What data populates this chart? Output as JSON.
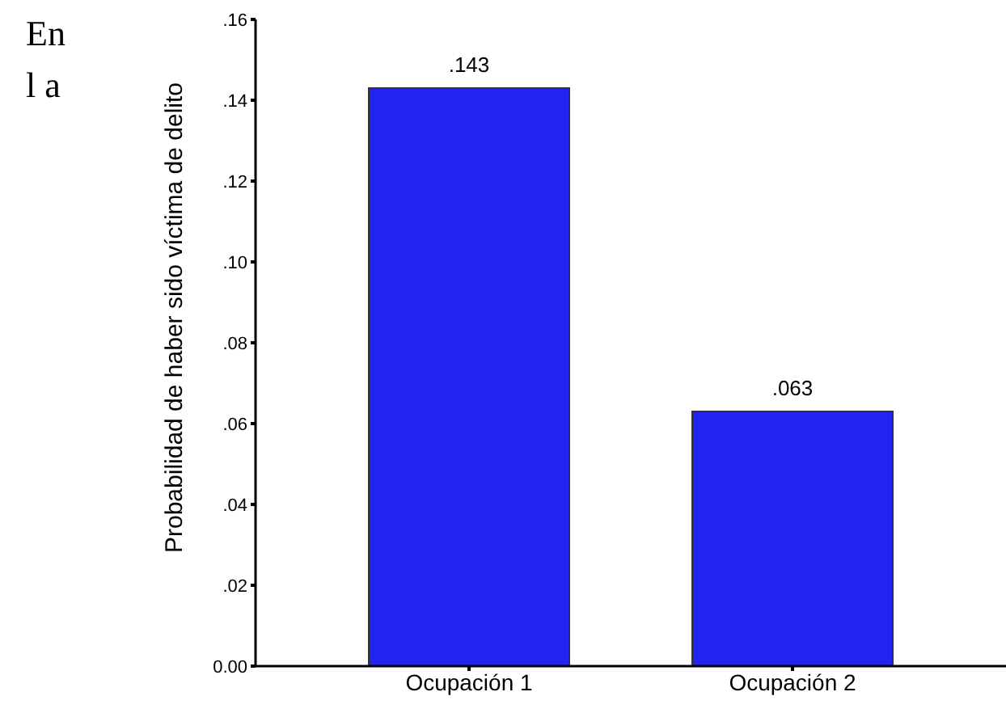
{
  "chart_data": {
    "type": "bar",
    "ylabel": "Probabilidad de haber sido víctima de delito",
    "categories": [
      "Ocupación 1",
      "Ocupación 2"
    ],
    "values": [
      0.143,
      0.063
    ],
    "value_labels": [
      ".143",
      ".063"
    ],
    "color": "#2424f0",
    "ylim": [
      0,
      0.16
    ],
    "yticks": [
      {
        "value": 0,
        "label": "0.00"
      },
      {
        "value": 0.02,
        "label": ".02"
      },
      {
        "value": 0.04,
        "label": ".04"
      },
      {
        "value": 0.06,
        "label": ".06"
      },
      {
        "value": 0.08,
        "label": ".08"
      },
      {
        "value": 0.1,
        "label": ".10"
      },
      {
        "value": 0.12,
        "label": ".12"
      },
      {
        "value": 0.14,
        "label": ".14"
      },
      {
        "value": 0.16,
        "label": ".16"
      }
    ],
    "grid": false,
    "legend": false,
    "annotations": [
      "En",
      "l a"
    ]
  }
}
